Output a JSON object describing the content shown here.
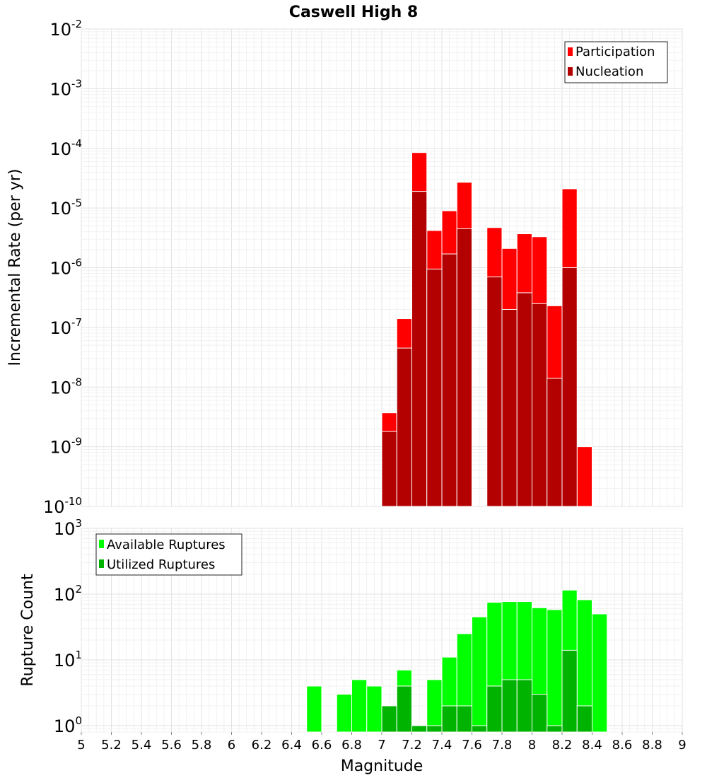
{
  "title": "Caswell High 8",
  "chart_data": [
    {
      "type": "bar",
      "panel": "top",
      "ylabel": "Incremental Rate (per yr)",
      "yscale": "log",
      "ylim": [
        1e-10,
        0.01
      ],
      "ytick_labels": [
        {
          "base": "10",
          "exp": "-10"
        },
        {
          "base": "10",
          "exp": "-9"
        },
        {
          "base": "10",
          "exp": "-8"
        },
        {
          "base": "10",
          "exp": "-7"
        },
        {
          "base": "10",
          "exp": "-6"
        },
        {
          "base": "10",
          "exp": "-5"
        },
        {
          "base": "10",
          "exp": "-4"
        },
        {
          "base": "10",
          "exp": "-3"
        },
        {
          "base": "10",
          "exp": "-2"
        }
      ],
      "xlim": [
        5,
        9
      ],
      "grid": true,
      "legend_position": "top-right",
      "bin_width": 0.1,
      "series": [
        {
          "name": "Participation",
          "color": "#ff0000",
          "points": [
            {
              "x": 7.05,
              "y": 3.7e-09
            },
            {
              "x": 7.15,
              "y": 1.4e-07
            },
            {
              "x": 7.25,
              "y": 8.5e-05
            },
            {
              "x": 7.35,
              "y": 4.2e-06
            },
            {
              "x": 7.45,
              "y": 9e-06
            },
            {
              "x": 7.55,
              "y": 2.7e-05
            },
            {
              "x": 7.75,
              "y": 4.7e-06
            },
            {
              "x": 7.85,
              "y": 2.1e-06
            },
            {
              "x": 7.95,
              "y": 3.7e-06
            },
            {
              "x": 8.05,
              "y": 3.3e-06
            },
            {
              "x": 8.15,
              "y": 2.3e-07
            },
            {
              "x": 8.25,
              "y": 2.1e-05
            },
            {
              "x": 8.35,
              "y": 1e-09
            }
          ]
        },
        {
          "name": "Nucleation",
          "color": "#b30000",
          "points": [
            {
              "x": 7.05,
              "y": 1.8e-09
            },
            {
              "x": 7.15,
              "y": 4.5e-08
            },
            {
              "x": 7.25,
              "y": 1.9e-05
            },
            {
              "x": 7.35,
              "y": 9.5e-07
            },
            {
              "x": 7.45,
              "y": 1.7e-06
            },
            {
              "x": 7.55,
              "y": 4.5e-06
            },
            {
              "x": 7.75,
              "y": 7e-07
            },
            {
              "x": 7.85,
              "y": 2e-07
            },
            {
              "x": 7.95,
              "y": 3.8e-07
            },
            {
              "x": 8.05,
              "y": 2.5e-07
            },
            {
              "x": 8.15,
              "y": 1.4e-08
            },
            {
              "x": 8.25,
              "y": 1e-06
            }
          ]
        }
      ]
    },
    {
      "type": "bar",
      "panel": "bottom",
      "xlabel": "Magnitude",
      "ylabel": "Rupture Count",
      "yscale": "log",
      "ylim": [
        0.8,
        1000
      ],
      "ytick_labels": [
        {
          "value": 1,
          "base": "10",
          "exp": "0"
        },
        {
          "value": 10,
          "base": "10",
          "exp": "1"
        },
        {
          "value": 100,
          "base": "10",
          "exp": "2"
        },
        {
          "value": 1000,
          "base": "10",
          "exp": "3"
        }
      ],
      "xlim": [
        5,
        9
      ],
      "xticks": [
        "5",
        "5.2",
        "5.4",
        "5.6",
        "5.8",
        "6",
        "6.2",
        "6.4",
        "6.6",
        "6.8",
        "7",
        "7.2",
        "7.4",
        "7.6",
        "7.8",
        "8",
        "8.2",
        "8.4",
        "8.6",
        "8.8",
        "9"
      ],
      "grid": true,
      "legend_position": "top-left",
      "bin_width": 0.1,
      "series": [
        {
          "name": "Available Ruptures",
          "color": "#00ff00",
          "points": [
            {
              "x": 6.55,
              "y": 4
            },
            {
              "x": 6.75,
              "y": 3
            },
            {
              "x": 6.85,
              "y": 5
            },
            {
              "x": 6.95,
              "y": 4
            },
            {
              "x": 7.05,
              "y": 2
            },
            {
              "x": 7.15,
              "y": 7
            },
            {
              "x": 7.25,
              "y": 1
            },
            {
              "x": 7.35,
              "y": 5
            },
            {
              "x": 7.45,
              "y": 11
            },
            {
              "x": 7.55,
              "y": 25
            },
            {
              "x": 7.65,
              "y": 45
            },
            {
              "x": 7.75,
              "y": 75
            },
            {
              "x": 7.85,
              "y": 77
            },
            {
              "x": 7.95,
              "y": 77
            },
            {
              "x": 8.05,
              "y": 62
            },
            {
              "x": 8.15,
              "y": 58
            },
            {
              "x": 8.25,
              "y": 115
            },
            {
              "x": 8.35,
              "y": 82
            },
            {
              "x": 8.45,
              "y": 50
            }
          ]
        },
        {
          "name": "Utilized Ruptures",
          "color": "#00b300",
          "points": [
            {
              "x": 7.05,
              "y": 2
            },
            {
              "x": 7.15,
              "y": 4
            },
            {
              "x": 7.25,
              "y": 1
            },
            {
              "x": 7.35,
              "y": 1
            },
            {
              "x": 7.45,
              "y": 2
            },
            {
              "x": 7.55,
              "y": 2
            },
            {
              "x": 7.65,
              "y": 1
            },
            {
              "x": 7.75,
              "y": 4
            },
            {
              "x": 7.85,
              "y": 5
            },
            {
              "x": 7.95,
              "y": 5
            },
            {
              "x": 8.05,
              "y": 3
            },
            {
              "x": 8.15,
              "y": 1
            },
            {
              "x": 8.25,
              "y": 14
            },
            {
              "x": 8.35,
              "y": 2
            }
          ]
        }
      ]
    }
  ]
}
